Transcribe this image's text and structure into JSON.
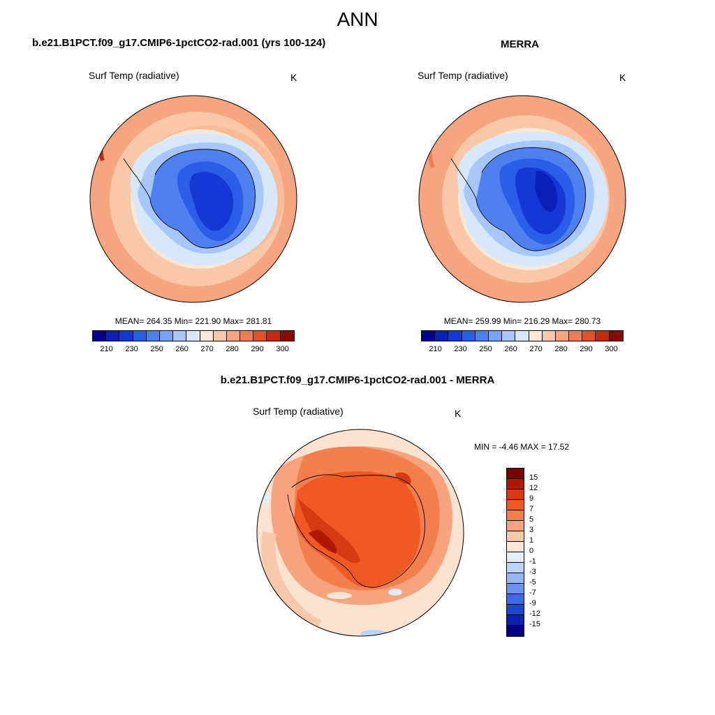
{
  "figure_title": "ANN",
  "panels": [
    {
      "title": "b.e21.B1PCT.f09_g17.CMIP6-1pctCO2-rad.001 (yrs 100-124)",
      "variable": "Surf Temp (radiative)",
      "units": "K",
      "stats": "MEAN= 264.35  Min= 221.90  Max= 281.81",
      "cbar_labels": [
        "210",
        "230",
        "250",
        "260",
        "270",
        "280",
        "290",
        "300"
      ]
    },
    {
      "title": "MERRA",
      "variable": "Surf Temp (radiative)",
      "units": "K",
      "stats": "MEAN= 259.99  Min= 216.29  Max= 280.73",
      "cbar_labels": [
        "210",
        "230",
        "250",
        "260",
        "270",
        "280",
        "290",
        "300"
      ]
    },
    {
      "title": "b.e21.B1PCT.f09_g17.CMIP6-1pctCO2-rad.001 - MERRA",
      "variable": "Surf Temp (radiative)",
      "units": "K",
      "stats": "MIN =  -4.46 MAX =  17.52",
      "cbar_labels": [
        "15",
        "12",
        "9",
        "7",
        "5",
        "3",
        "1",
        "0",
        "-1",
        "-3",
        "-5",
        "-7",
        "-9",
        "-12",
        "-15"
      ]
    }
  ],
  "colors": {
    "abs_scale": [
      "#00008f",
      "#0a1fb8",
      "#1537d6",
      "#2a5de8",
      "#4e80f0",
      "#7aa3f5",
      "#a9c6f8",
      "#d8e8fb",
      "#fbe7d6",
      "#f9c8a8",
      "#f5a57f",
      "#ef7c56",
      "#e2502e",
      "#c42a12",
      "#8b0a00"
    ],
    "diff_scale": [
      "#7a0000",
      "#b01800",
      "#d63a10",
      "#ef5a24",
      "#f37e4e",
      "#f6a37e",
      "#f8c8ab",
      "#fbe5d6",
      "#e3eefb",
      "#bcd4f8",
      "#94b7f4",
      "#6a93ee",
      "#3f6ce6",
      "#1c45d2",
      "#0a22b0",
      "#000080"
    ]
  }
}
